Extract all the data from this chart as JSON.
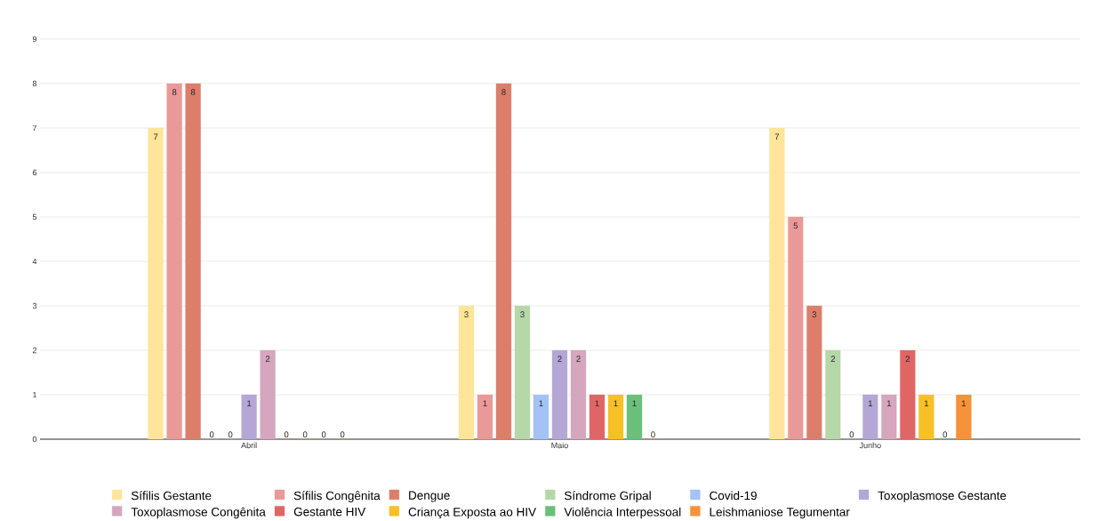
{
  "chart_data": {
    "type": "bar",
    "categories": [
      "Abril",
      "Maio",
      "Junho"
    ],
    "series": [
      {
        "name": "Sífilis Gestante",
        "color": "#ffe599",
        "values": [
          7,
          3,
          7
        ]
      },
      {
        "name": "Sífilis Congênita",
        "color": "#ea9999",
        "values": [
          8,
          1,
          5
        ]
      },
      {
        "name": "Dengue",
        "color": "#dd7e6b",
        "values": [
          8,
          8,
          3
        ]
      },
      {
        "name": "Síndrome Gripal",
        "color": "#b6d7a8",
        "values": [
          0,
          3,
          2
        ]
      },
      {
        "name": "Covid-19",
        "color": "#a4c2f4",
        "values": [
          0,
          1,
          0
        ]
      },
      {
        "name": "Toxoplasmose Gestante",
        "color": "#b4a7d6",
        "values": [
          1,
          2,
          1
        ]
      },
      {
        "name": "Toxoplasmose Congênita",
        "color": "#d5a6bd",
        "values": [
          2,
          2,
          1
        ]
      },
      {
        "name": "Gestante HIV",
        "color": "#e06666",
        "values": [
          0,
          1,
          2
        ]
      },
      {
        "name": "Criança Exposta ao HIV",
        "color": "#f6c026",
        "values": [
          0,
          1,
          1
        ]
      },
      {
        "name": "Violência Interpessoal",
        "color": "#6abf7b",
        "values": [
          0,
          1,
          0
        ]
      },
      {
        "name": "Leishmaniose Tegumentar",
        "color": "#f6923a",
        "values": [
          0,
          0,
          1
        ]
      }
    ],
    "ylim": [
      0,
      9
    ],
    "yticks": [
      0,
      1,
      2,
      3,
      4,
      5,
      6,
      7,
      8,
      9
    ],
    "grid": "y",
    "legend": "bottom",
    "data_labels": true
  }
}
